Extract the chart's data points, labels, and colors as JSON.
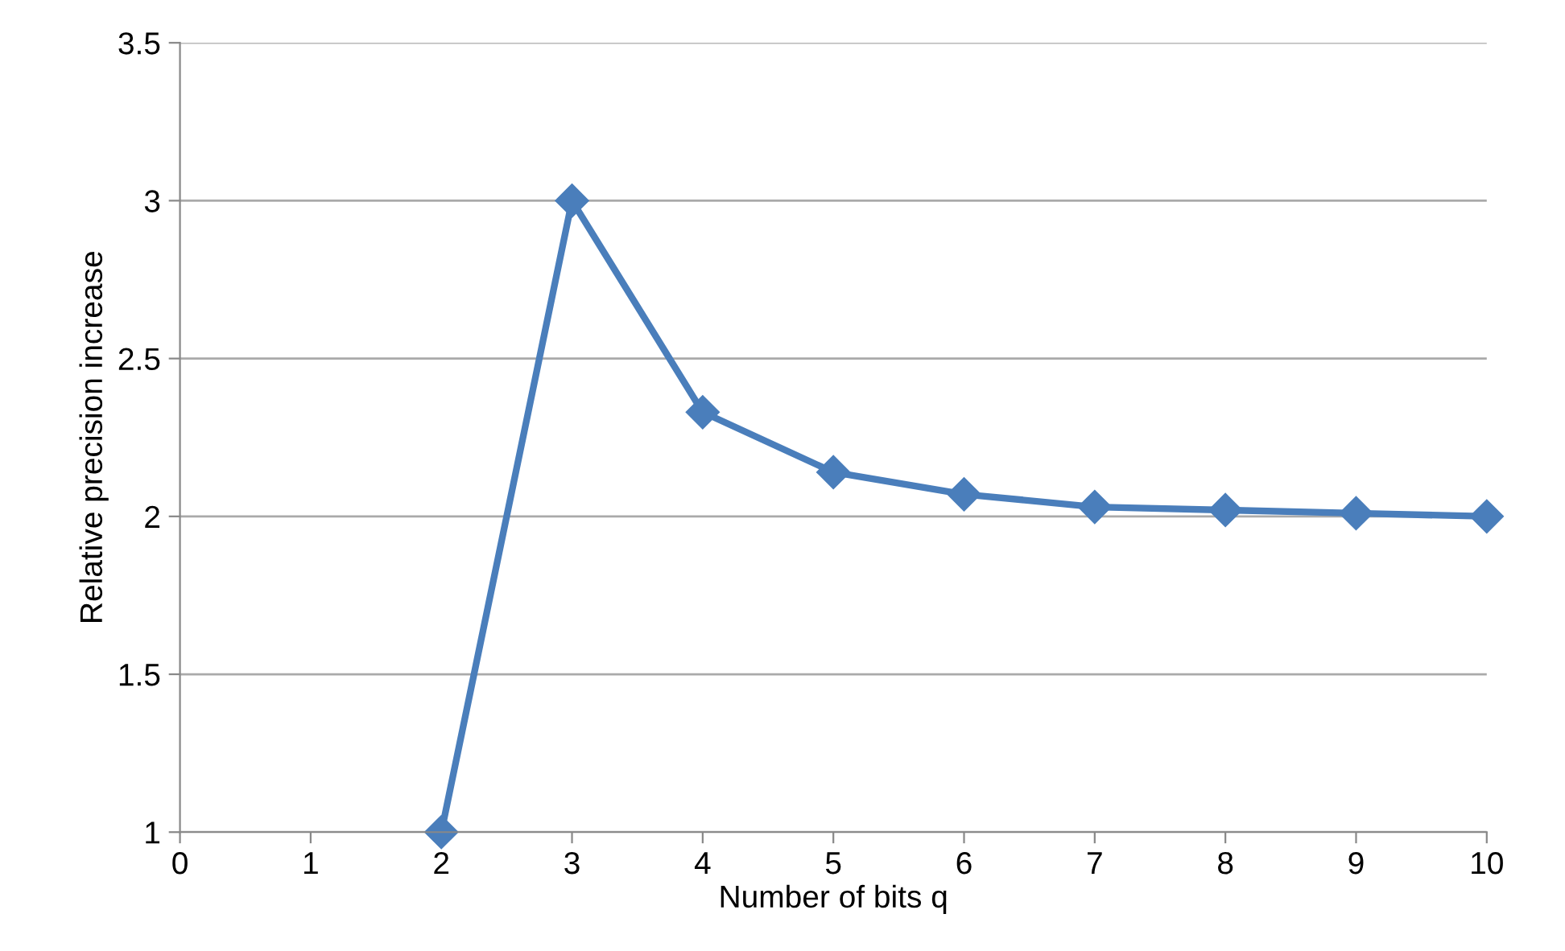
{
  "chart_data": {
    "type": "line",
    "xlabel": "Number of bits q",
    "ylabel": "Relative precision increase",
    "x": [
      2,
      3,
      4,
      5,
      6,
      7,
      8,
      9,
      10
    ],
    "series": [
      {
        "color": "#4a7ebb",
        "values": [
          1,
          3,
          2.33,
          2.14,
          2.07,
          2.03,
          2.02,
          2.01,
          2.0
        ]
      }
    ],
    "xlim": [
      0,
      10
    ],
    "xticks": [
      0,
      1,
      2,
      3,
      4,
      5,
      6,
      7,
      8,
      9,
      10
    ],
    "ylim": [
      1,
      3.5
    ],
    "yticks": [
      1,
      1.5,
      2,
      2.5,
      3,
      3.5
    ],
    "grid": "y",
    "marker": "diamond",
    "line_style": "solid"
  }
}
